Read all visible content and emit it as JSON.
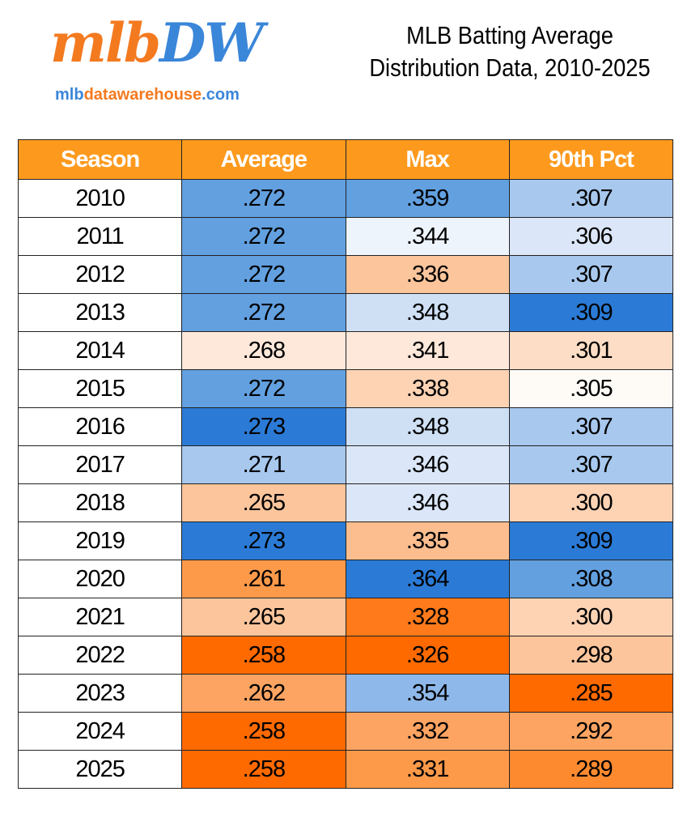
{
  "header": {
    "logo": {
      "part1": "mlb",
      "part2": "DW"
    },
    "site": {
      "part1": "mlb",
      "part2": "datawarehouse",
      "part3": ".com"
    },
    "title_line1": "MLB Batting Average",
    "title_line2": "Distribution Data, 2010-2025"
  },
  "table": {
    "columns": [
      "Season",
      "Average",
      "Max",
      "90th Pct"
    ],
    "header_color": "#fd9a1e",
    "rows": [
      [
        "2010",
        ".272",
        ".359",
        ".307"
      ],
      [
        "2011",
        ".272",
        ".344",
        ".306"
      ],
      [
        "2012",
        ".272",
        ".336",
        ".307"
      ],
      [
        "2013",
        ".272",
        ".348",
        ".309"
      ],
      [
        "2014",
        ".268",
        ".341",
        ".301"
      ],
      [
        "2015",
        ".272",
        ".338",
        ".305"
      ],
      [
        "2016",
        ".273",
        ".348",
        ".307"
      ],
      [
        "2017",
        ".271",
        ".346",
        ".307"
      ],
      [
        "2018",
        ".265",
        ".346",
        ".300"
      ],
      [
        "2019",
        ".273",
        ".335",
        ".309"
      ],
      [
        "2020",
        ".261",
        ".364",
        ".308"
      ],
      [
        "2021",
        ".265",
        ".328",
        ".300"
      ],
      [
        "2022",
        ".258",
        ".326",
        ".298"
      ],
      [
        "2023",
        ".262",
        ".354",
        ".285"
      ],
      [
        "2024",
        ".258",
        ".332",
        ".292"
      ],
      [
        "2025",
        ".258",
        ".331",
        ".289"
      ]
    ],
    "cell_colors": [
      [
        "#ffffff",
        "#62a0e0",
        "#62a0e0",
        "#a8c8ee"
      ],
      [
        "#ffffff",
        "#62a0e0",
        "#eef4fc",
        "#dbe7f8"
      ],
      [
        "#ffffff",
        "#62a0e0",
        "#fcc59c",
        "#a8c8ee"
      ],
      [
        "#ffffff",
        "#62a0e0",
        "#cfe0f5",
        "#2b7bd6"
      ],
      [
        "#ffffff",
        "#fde8da",
        "#fde8da",
        "#fdddc6"
      ],
      [
        "#ffffff",
        "#62a0e0",
        "#fdd3b4",
        "#fefaf6"
      ],
      [
        "#ffffff",
        "#2b7bd6",
        "#cfe0f5",
        "#a8c8ee"
      ],
      [
        "#ffffff",
        "#a8c8ee",
        "#dbe7f8",
        "#a8c8ee"
      ],
      [
        "#ffffff",
        "#fcc59c",
        "#dbe7f8",
        "#fdd3b4"
      ],
      [
        "#ffffff",
        "#2b7bd6",
        "#fcbd8f",
        "#2b7bd6"
      ],
      [
        "#ffffff",
        "#fd9a4a",
        "#2b7bd6",
        "#62a0e0"
      ],
      [
        "#ffffff",
        "#fcc59c",
        "#fe7a1a",
        "#fdd3b4"
      ],
      [
        "#ffffff",
        "#fe6a00",
        "#fe6a00",
        "#fcc59c"
      ],
      [
        "#ffffff",
        "#fda462",
        "#8fb8ea",
        "#fe6a00"
      ],
      [
        "#ffffff",
        "#fe6a00",
        "#fda462",
        "#fda462"
      ],
      [
        "#ffffff",
        "#fe6a00",
        "#fd9a4a",
        "#fe8a30"
      ]
    ]
  }
}
